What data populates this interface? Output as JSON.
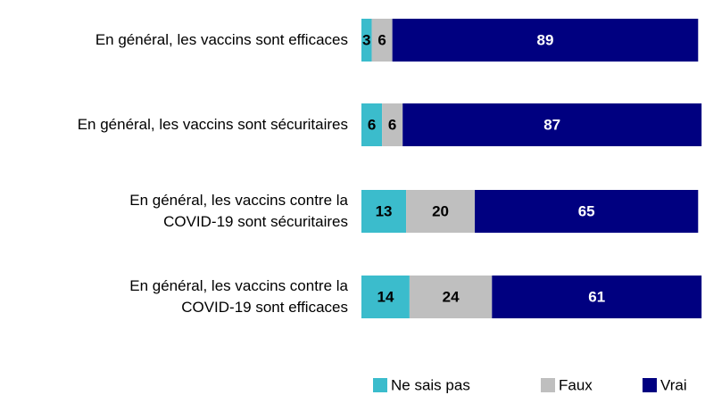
{
  "chart_data": {
    "type": "stacked_barh",
    "categories": [
      "En général, les vaccins sont efficaces",
      "En général, les vaccins sont sécuritaires",
      "En général, les vaccins contre la\nCOVID-19 sont sécuritaires",
      "En général, les vaccins contre la\nCOVID-19 sont efficaces"
    ],
    "series": [
      {
        "name": "Ne sais pas",
        "color": "#3bbccc",
        "values": [
          3,
          6,
          13,
          14
        ]
      },
      {
        "name": "Faux",
        "color": "#bfbfbf",
        "values": [
          6,
          6,
          20,
          24
        ]
      },
      {
        "name": "Vrai",
        "color": "#000080",
        "values": [
          89,
          87,
          65,
          61
        ]
      }
    ],
    "xlim": [
      0,
      100
    ],
    "legend": "bottom-right"
  }
}
